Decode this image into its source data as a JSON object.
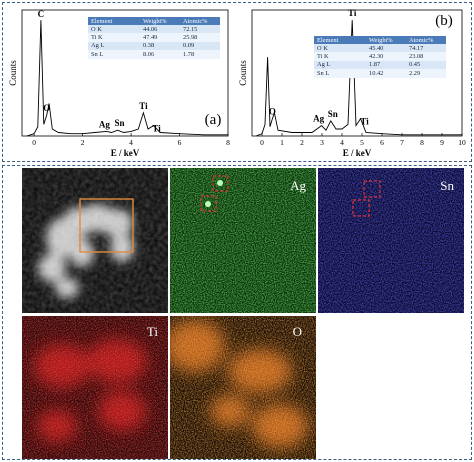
{
  "spectrum_a": {
    "panel_label": "(a)",
    "xlabel": "E / keV",
    "ylabel": "Counts",
    "peak_labels": [
      "C",
      "O",
      "Ag",
      "Sn",
      "Ti",
      "Ti"
    ],
    "table": {
      "headers": [
        "Element",
        "Weight%",
        "Atomic%"
      ],
      "rows": [
        [
          "O K",
          "44.06",
          "72.15"
        ],
        [
          "Ti K",
          "47.49",
          "25.98"
        ],
        [
          "Ag L",
          "0.38",
          "0.09"
        ],
        [
          "Sn L",
          "8.06",
          "1.78"
        ]
      ]
    }
  },
  "spectrum_b": {
    "panel_label": "(b)",
    "xlabel": "E / keV",
    "ylabel": "Counts",
    "peak_labels": [
      "C",
      "O",
      "Ag",
      "Sn",
      "Ti",
      "Ti"
    ],
    "table": {
      "headers": [
        "Element",
        "Weight%",
        "Atomic%"
      ],
      "rows": [
        [
          "O K",
          "45.40",
          "74.17"
        ],
        [
          "Ti K",
          "42.30",
          "23.08"
        ],
        [
          "Ag L",
          "1.87",
          "0.45"
        ],
        [
          "Sn L",
          "10.42",
          "2.29"
        ]
      ]
    }
  },
  "chart_data": [
    {
      "type": "line",
      "xlabel": "E / keV",
      "ylabel": "Counts",
      "xlim": [
        -0.5,
        8
      ],
      "xticks": [
        0,
        2,
        4,
        6,
        8
      ],
      "x": [
        -0.3,
        0.0,
        0.15,
        0.28,
        0.4,
        0.52,
        0.62,
        0.75,
        1.0,
        1.5,
        2.0,
        2.5,
        2.98,
        3.2,
        3.44,
        3.7,
        4.0,
        4.3,
        4.51,
        4.7,
        4.93,
        5.2,
        6.0,
        7.0,
        8.0
      ],
      "y": [
        0,
        2,
        8,
        100,
        10,
        18,
        28,
        6,
        3,
        2,
        2,
        3,
        4,
        3,
        5,
        3,
        4,
        6,
        20,
        6,
        9,
        3,
        2,
        1,
        1
      ],
      "peaks": [
        {
          "label": "C",
          "x": 0.28
        },
        {
          "label": "O",
          "x": 0.52
        },
        {
          "label": "Ag",
          "x": 2.98
        },
        {
          "label": "Sn",
          "x": 3.44
        },
        {
          "label": "Ti",
          "x": 4.51
        },
        {
          "label": "Ti",
          "x": 4.93
        }
      ]
    },
    {
      "type": "line",
      "xlabel": "E / keV",
      "ylabel": "Counts",
      "xlim": [
        -0.5,
        10
      ],
      "xticks": [
        0,
        1,
        2,
        3,
        4,
        5,
        6,
        7,
        8,
        9,
        10
      ],
      "x": [
        -0.3,
        0.0,
        0.15,
        0.28,
        0.4,
        0.52,
        0.62,
        0.8,
        1.5,
        2.5,
        2.98,
        3.2,
        3.44,
        3.7,
        4.0,
        4.3,
        4.51,
        4.7,
        4.93,
        5.2,
        6.0,
        7.0,
        8.0,
        9.0,
        10.0
      ],
      "y": [
        0,
        2,
        10,
        68,
        8,
        15,
        20,
        5,
        3,
        3,
        9,
        5,
        13,
        6,
        6,
        10,
        100,
        9,
        15,
        3,
        2,
        1,
        1,
        1,
        1
      ],
      "peaks": [
        {
          "label": "C",
          "x": 0.28
        },
        {
          "label": "O",
          "x": 0.52
        },
        {
          "label": "Ag",
          "x": 2.98
        },
        {
          "label": "Sn",
          "x": 3.44
        },
        {
          "label": "Ti",
          "x": 4.51
        },
        {
          "label": "Ti",
          "x": 4.93
        }
      ]
    }
  ],
  "maps": {
    "ag_label": "Ag",
    "sn_label": "Sn",
    "ti_label": "Ti",
    "o_label": "O"
  },
  "colors": {
    "frame": "#3a5f86",
    "spectrum_line": "#000000",
    "selection_box": "#e08a3c",
    "marker_box": "#e0342e",
    "ag_map": "#1f9a1f",
    "sn_map": "#2a2ad6",
    "ti_map": "#d41c1c",
    "o_map": "#d9731c"
  }
}
